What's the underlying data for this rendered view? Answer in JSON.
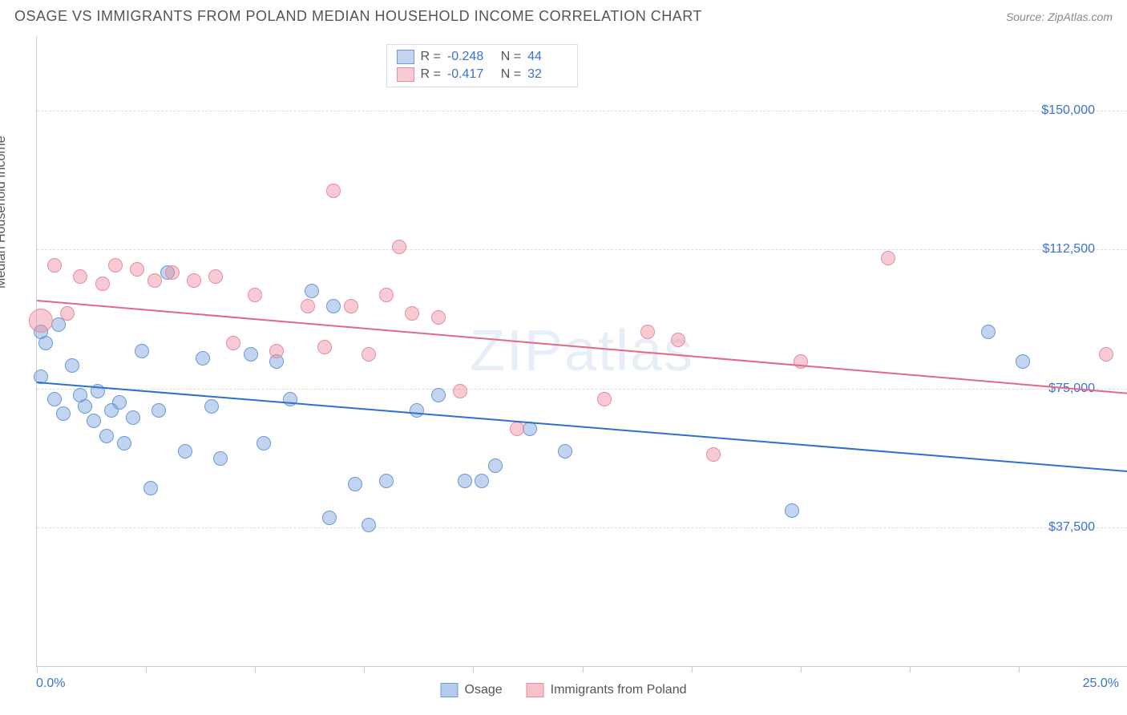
{
  "header": {
    "title": "OSAGE VS IMMIGRANTS FROM POLAND MEDIAN HOUSEHOLD INCOME CORRELATION CHART",
    "source": "Source: ZipAtlas.com"
  },
  "chart": {
    "type": "scatter",
    "y_axis_label": "Median Household Income",
    "x_min": 0.0,
    "x_max": 25.0,
    "x_min_label": "0.0%",
    "x_max_label": "25.0%",
    "x_ticks": [
      0,
      2.5,
      5,
      7.5,
      10,
      12.5,
      15,
      17.5,
      20,
      22.5,
      25
    ],
    "y_min": 0,
    "y_max": 170000,
    "y_gridlines": [
      {
        "value": 37500,
        "label": "$37,500"
      },
      {
        "value": 75000,
        "label": "$75,000"
      },
      {
        "value": 112500,
        "label": "$112,500"
      },
      {
        "value": 150000,
        "label": "$150,000"
      }
    ],
    "background_color": "#ffffff",
    "grid_color": "#dddddd",
    "axis_color": "#cccccc",
    "tick_label_color": "#3b72d1",
    "watermark": "ZIPatlas",
    "series": [
      {
        "name": "Osage",
        "fill_color": "rgba(120,160,220,0.45)",
        "stroke_color": "#6a9ad8",
        "point_radius": 9,
        "R": "-0.248",
        "N": "44",
        "trend": {
          "y_at_xmin": 77000,
          "y_at_xmax": 53000,
          "color": "#2f6fd0"
        },
        "points": [
          {
            "x": 0.1,
            "y": 90000
          },
          {
            "x": 0.1,
            "y": 78000
          },
          {
            "x": 0.2,
            "y": 87000
          },
          {
            "x": 0.4,
            "y": 72000
          },
          {
            "x": 0.5,
            "y": 92000
          },
          {
            "x": 0.6,
            "y": 68000
          },
          {
            "x": 0.8,
            "y": 81000
          },
          {
            "x": 1.0,
            "y": 73000
          },
          {
            "x": 1.1,
            "y": 70000
          },
          {
            "x": 1.3,
            "y": 66000
          },
          {
            "x": 1.4,
            "y": 74000
          },
          {
            "x": 1.6,
            "y": 62000
          },
          {
            "x": 1.7,
            "y": 69000
          },
          {
            "x": 1.9,
            "y": 71000
          },
          {
            "x": 2.0,
            "y": 60000
          },
          {
            "x": 2.2,
            "y": 67000
          },
          {
            "x": 2.4,
            "y": 85000
          },
          {
            "x": 2.6,
            "y": 48000
          },
          {
            "x": 2.8,
            "y": 69000
          },
          {
            "x": 3.0,
            "y": 106000
          },
          {
            "x": 3.4,
            "y": 58000
          },
          {
            "x": 3.8,
            "y": 83000
          },
          {
            "x": 4.0,
            "y": 70000
          },
          {
            "x": 4.2,
            "y": 56000
          },
          {
            "x": 4.9,
            "y": 84000
          },
          {
            "x": 5.2,
            "y": 60000
          },
          {
            "x": 5.5,
            "y": 82000
          },
          {
            "x": 5.8,
            "y": 72000
          },
          {
            "x": 6.3,
            "y": 101000
          },
          {
            "x": 6.7,
            "y": 40000
          },
          {
            "x": 6.8,
            "y": 97000
          },
          {
            "x": 7.3,
            "y": 49000
          },
          {
            "x": 7.6,
            "y": 38000
          },
          {
            "x": 8.0,
            "y": 50000
          },
          {
            "x": 8.7,
            "y": 69000
          },
          {
            "x": 9.2,
            "y": 73000
          },
          {
            "x": 9.8,
            "y": 50000
          },
          {
            "x": 10.2,
            "y": 50000
          },
          {
            "x": 10.5,
            "y": 54000
          },
          {
            "x": 11.3,
            "y": 64000
          },
          {
            "x": 12.1,
            "y": 58000
          },
          {
            "x": 17.3,
            "y": 42000
          },
          {
            "x": 21.8,
            "y": 90000
          },
          {
            "x": 22.6,
            "y": 82000
          }
        ]
      },
      {
        "name": "Immigrants from Poland",
        "fill_color": "rgba(240,140,160,0.45)",
        "stroke_color": "#e58ca0",
        "point_radius": 9,
        "R": "-0.417",
        "N": "32",
        "trend": {
          "y_at_xmin": 99000,
          "y_at_xmax": 74000,
          "color": "#e06a86"
        },
        "points": [
          {
            "x": 0.1,
            "y": 93000,
            "r": 15
          },
          {
            "x": 0.4,
            "y": 108000
          },
          {
            "x": 0.7,
            "y": 95000
          },
          {
            "x": 1.0,
            "y": 105000
          },
          {
            "x": 1.5,
            "y": 103000
          },
          {
            "x": 1.8,
            "y": 108000
          },
          {
            "x": 2.3,
            "y": 107000
          },
          {
            "x": 2.7,
            "y": 104000
          },
          {
            "x": 3.1,
            "y": 106000
          },
          {
            "x": 3.6,
            "y": 104000
          },
          {
            "x": 4.1,
            "y": 105000
          },
          {
            "x": 4.5,
            "y": 87000
          },
          {
            "x": 5.0,
            "y": 100000
          },
          {
            "x": 5.5,
            "y": 85000
          },
          {
            "x": 6.2,
            "y": 97000
          },
          {
            "x": 6.6,
            "y": 86000
          },
          {
            "x": 6.8,
            "y": 128000
          },
          {
            "x": 7.2,
            "y": 97000
          },
          {
            "x": 7.6,
            "y": 84000
          },
          {
            "x": 8.0,
            "y": 100000
          },
          {
            "x": 8.3,
            "y": 113000
          },
          {
            "x": 8.6,
            "y": 95000
          },
          {
            "x": 9.2,
            "y": 94000
          },
          {
            "x": 9.7,
            "y": 74000
          },
          {
            "x": 11.0,
            "y": 64000
          },
          {
            "x": 13.0,
            "y": 72000
          },
          {
            "x": 14.0,
            "y": 90000
          },
          {
            "x": 14.7,
            "y": 88000
          },
          {
            "x": 15.5,
            "y": 57000
          },
          {
            "x": 17.5,
            "y": 82000
          },
          {
            "x": 19.5,
            "y": 110000
          },
          {
            "x": 24.5,
            "y": 84000
          }
        ]
      }
    ],
    "legend_bottom": [
      {
        "label": "Osage",
        "fill": "rgba(120,160,220,0.55)",
        "stroke": "#6a9ad8"
      },
      {
        "label": "Immigrants from Poland",
        "fill": "rgba(240,140,160,0.55)",
        "stroke": "#e58ca0"
      }
    ]
  }
}
